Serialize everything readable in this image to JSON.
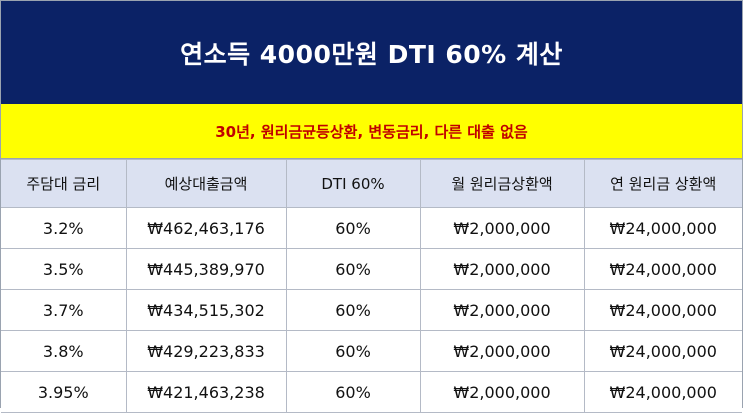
{
  "title": "연소득 4000만원 DTI 60% 계산",
  "subtitle": "30년, 원리금균등상환, 변동금리, 다른 대출 없음",
  "colors": {
    "title_background": "#0b2266",
    "title_text": "#ffffff",
    "subtitle_background": "#ffff00",
    "subtitle_text": "#c00000",
    "header_background": "#dbe1f1"
  },
  "table": {
    "headers": [
      "주담대 금리",
      "예상대출금액",
      "DTI 60%",
      "월 원리금상환액",
      "연 원리금 상환액"
    ],
    "rows": [
      [
        "3.2%",
        "₩462,463,176",
        "60%",
        "₩2,000,000",
        "₩24,000,000"
      ],
      [
        "3.5%",
        "₩445,389,970",
        "60%",
        "₩2,000,000",
        "₩24,000,000"
      ],
      [
        "3.7%",
        "₩434,515,302",
        "60%",
        "₩2,000,000",
        "₩24,000,000"
      ],
      [
        "3.8%",
        "₩429,223,833",
        "60%",
        "₩2,000,000",
        "₩24,000,000"
      ],
      [
        "3.95%",
        "₩421,463,238",
        "60%",
        "₩2,000,000",
        "₩24,000,000"
      ]
    ]
  }
}
